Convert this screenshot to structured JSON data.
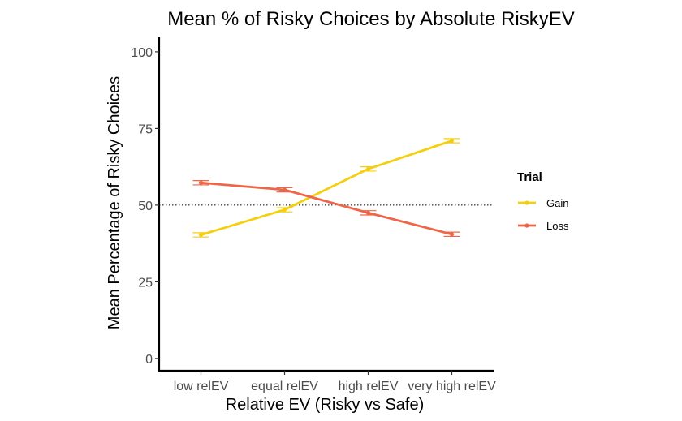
{
  "chart_data": {
    "type": "line",
    "title": "Mean % of Risky Choices by Absolute RiskyEV",
    "xlabel": "Relative EV (Risky vs Safe)",
    "ylabel": "Mean Percentage of Risky Choices",
    "categories": [
      "low relEV",
      "equal relEV",
      "high relEV",
      "very high relEV"
    ],
    "ylim": [
      -4,
      105
    ],
    "yticks": [
      0,
      25,
      50,
      75,
      100
    ],
    "reference_line": 50,
    "legend": {
      "title": "Trial",
      "position": "right"
    },
    "grid": false,
    "series": [
      {
        "name": "Gain",
        "color": "#f5cf0e",
        "values": [
          40.3,
          48.5,
          61.8,
          71.0
        ],
        "error": [
          0.7,
          0.7,
          0.7,
          0.7
        ]
      },
      {
        "name": "Loss",
        "color": "#ee6548",
        "values": [
          57.3,
          55.0,
          47.5,
          40.5
        ],
        "error": [
          0.7,
          0.7,
          0.7,
          0.7
        ]
      }
    ]
  }
}
